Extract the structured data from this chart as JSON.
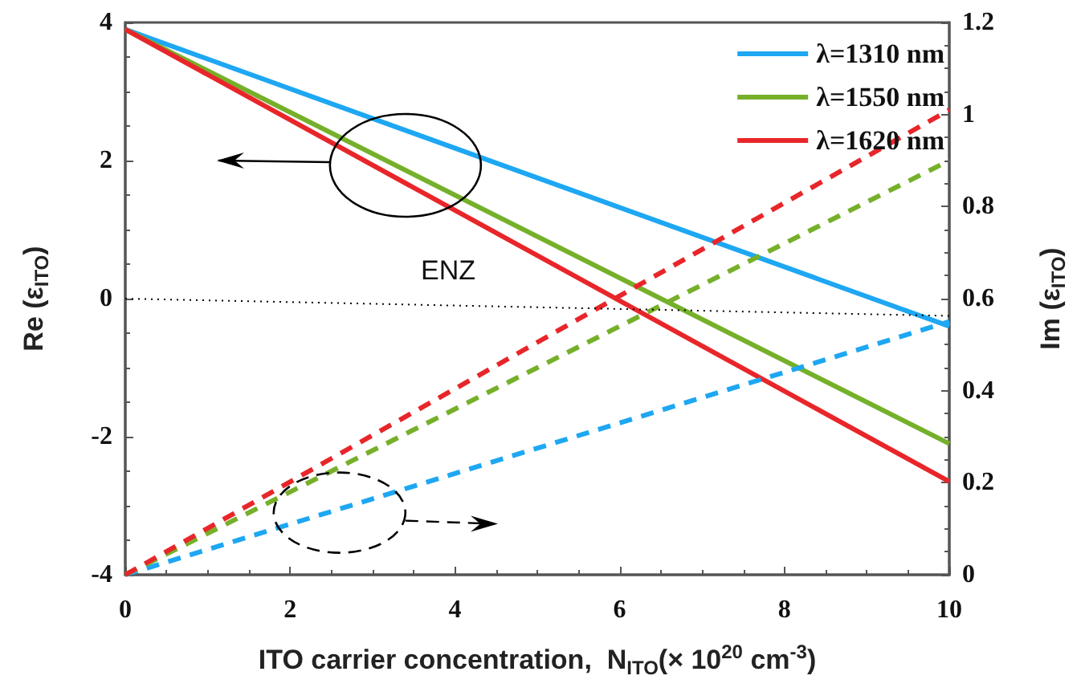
{
  "chart_data": {
    "type": "line",
    "xlabel": "ITO carrier concentration,  N$_{ITO}$(× 10$^{20}$ cm$^{-3}$)",
    "ylabel": "Re (ε$_{ITO}$)",
    "y2label": "Im (ε$_{ITO}$)",
    "x": [
      0,
      10
    ],
    "series": [
      {
        "name": "λ=1310 nm",
        "color": "#1ea7f2",
        "values": [
          3.9,
          -0.4
        ]
      },
      {
        "name": "λ=1550 nm",
        "color": "#76b02a",
        "values": [
          3.9,
          -2.1
        ]
      },
      {
        "name": "λ=1620 nm",
        "color": "#e8262a",
        "values": [
          3.9,
          -2.65
        ]
      },
      {
        "color": "#1ea7f2",
        "values": [
          0,
          0.55
        ],
        "axis": "y2",
        "line_style": "dashed"
      },
      {
        "color": "#76b02a",
        "values": [
          0,
          0.9
        ],
        "axis": "y2",
        "line_style": "dashed"
      },
      {
        "color": "#e8262a",
        "values": [
          0,
          1.01
        ],
        "axis": "y2",
        "line_style": "dashed"
      },
      {
        "color": "#000000",
        "values": [
          0,
          -0.25
        ],
        "line_style": "dotted"
      }
    ],
    "annotations": [
      "ENZ"
    ],
    "xlim": [
      0,
      10
    ],
    "xticks": [
      0,
      2,
      4,
      6,
      8,
      10
    ],
    "ylim": [
      -4,
      4
    ],
    "yticks": [
      -4,
      -2,
      0,
      2,
      4
    ],
    "y2lim": [
      0,
      1.2
    ],
    "y2ticks": [
      0,
      0.2,
      0.4,
      0.6,
      0.8,
      1,
      1.2
    ],
    "legend": "top right",
    "grid": false,
    "marker": "none",
    "line_style": "solid"
  }
}
